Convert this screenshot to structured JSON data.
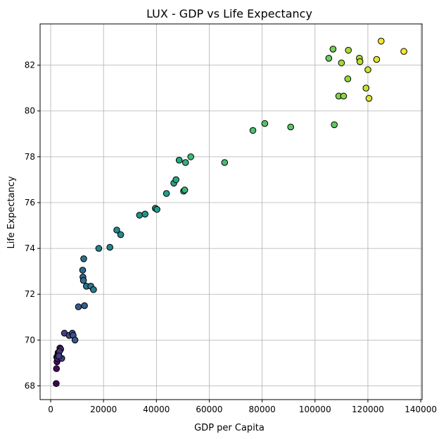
{
  "chart_data": {
    "type": "scatter",
    "title": "LUX - GDP vs Life Expectancy",
    "xlabel": "GDP per Capita",
    "ylabel": "Life Expectancy",
    "xlim": [
      -4000,
      140500
    ],
    "ylim": [
      67.4,
      83.8
    ],
    "xticks": [
      0,
      20000,
      40000,
      60000,
      80000,
      100000,
      120000,
      140000
    ],
    "xtick_labels": [
      "0",
      "20000",
      "40000",
      "60000",
      "80000",
      "100000",
      "120000",
      "140000"
    ],
    "yticks": [
      68,
      70,
      72,
      74,
      76,
      78,
      80,
      82
    ],
    "ytick_labels": [
      "68",
      "70",
      "72",
      "74",
      "76",
      "78",
      "80",
      "82"
    ],
    "grid": true,
    "colormap": "viridis",
    "x": [
      2100,
      2200,
      2400,
      2300,
      2500,
      2800,
      2600,
      3000,
      3500,
      3800,
      3300,
      4200,
      3100,
      5200,
      7000,
      8200,
      8500,
      9200,
      10500,
      12800,
      12200,
      12100,
      12400,
      12500,
      13500,
      15200,
      16200,
      18200,
      22400,
      25000,
      26500,
      33600,
      35700,
      39600,
      40200,
      43800,
      46600,
      47400,
      48600,
      50300,
      51000,
      50700,
      53000,
      65800,
      76500,
      81000,
      90800,
      107300,
      105200,
      106800,
      109000,
      110800,
      112400,
      110000,
      112600,
      116800,
      117000,
      119300,
      120000,
      120400,
      123300,
      125000,
      133600
    ],
    "y": [
      68.1,
      68.75,
      69.05,
      69.25,
      69.3,
      69.45,
      69.2,
      69.4,
      69.65,
      69.6,
      69.5,
      69.2,
      69.3,
      70.3,
      70.2,
      70.3,
      70.2,
      70.0,
      71.45,
      71.5,
      72.75,
      73.05,
      72.6,
      73.55,
      72.35,
      72.35,
      72.2,
      74.0,
      74.05,
      74.8,
      74.6,
      75.45,
      75.5,
      75.75,
      75.7,
      76.4,
      76.85,
      77.0,
      77.85,
      76.5,
      77.75,
      76.55,
      78.0,
      77.75,
      79.15,
      79.45,
      79.3,
      79.4,
      82.3,
      82.7,
      80.65,
      80.65,
      81.4,
      82.1,
      82.65,
      82.3,
      82.15,
      81.0,
      81.8,
      80.55,
      82.25,
      83.05,
      82.6
    ]
  }
}
